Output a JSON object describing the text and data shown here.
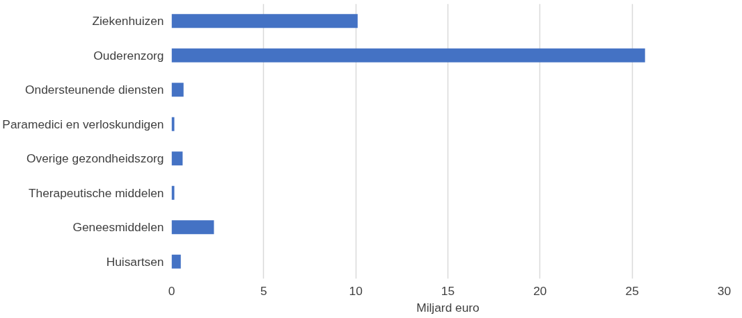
{
  "chart_data": {
    "type": "bar",
    "orientation": "horizontal",
    "xlabel": "Miljard euro",
    "categories": [
      "Ziekenhuizen",
      "Ouderenzorg",
      "Ondersteunende diensten",
      "Paramedici en verloskundigen",
      "Overige gezondheidszorg",
      "Therapeutische middelen",
      "Geneesmiddelen",
      "Huisartsen"
    ],
    "values": [
      10.1,
      25.7,
      0.65,
      0.15,
      0.6,
      0.15,
      2.3,
      0.5
    ],
    "color": "#4472c4",
    "xlim": [
      0,
      30
    ],
    "xticks": [
      0,
      5,
      10,
      15,
      20,
      25,
      30
    ],
    "grid": "x"
  }
}
